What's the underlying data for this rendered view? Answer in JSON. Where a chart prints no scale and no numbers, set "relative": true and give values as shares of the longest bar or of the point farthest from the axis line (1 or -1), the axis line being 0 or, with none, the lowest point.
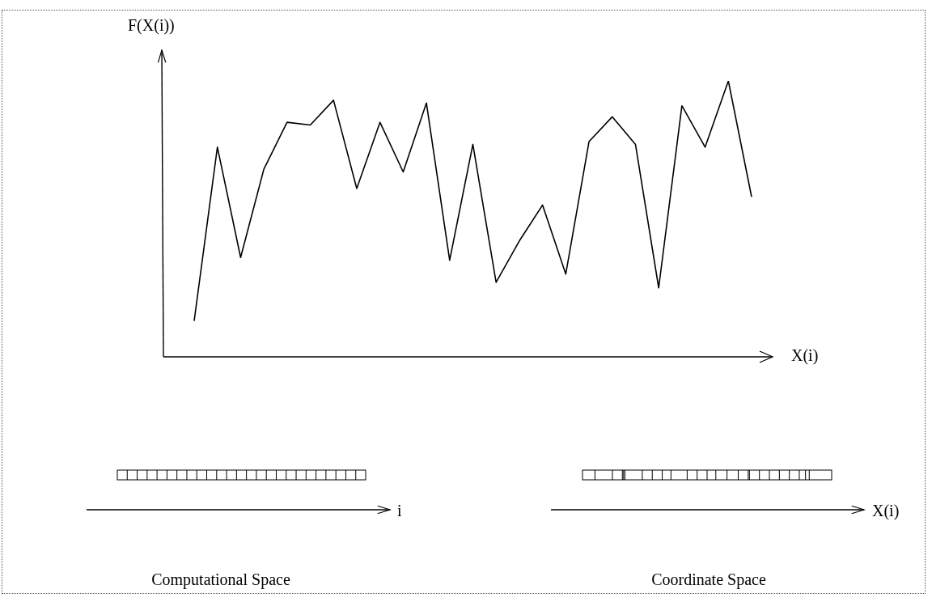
{
  "chart_data": {
    "type": "line",
    "relative": true,
    "ylabel": "F(X(i))",
    "xlabel": "X(i)",
    "categories": [
      null,
      null,
      null,
      null,
      null,
      null,
      null,
      null,
      null,
      null,
      null,
      null,
      null,
      null,
      null,
      null,
      null,
      null,
      null,
      null,
      null,
      null,
      null,
      null,
      null
    ],
    "series": [
      {
        "color": "#000000",
        "values": [
          0.13,
          0.76,
          0.36,
          0.68,
          0.85,
          0.84,
          0.93,
          0.61,
          0.85,
          0.67,
          0.92,
          0.35,
          0.77,
          0.27,
          0.42,
          0.55,
          0.3,
          0.78,
          0.87,
          0.77,
          0.25,
          0.91,
          0.76,
          1,
          0.58
        ]
      }
    ],
    "annotations": [
      "i",
      "X(i)",
      "Computational Space",
      "Coordinate Space"
    ]
  }
}
